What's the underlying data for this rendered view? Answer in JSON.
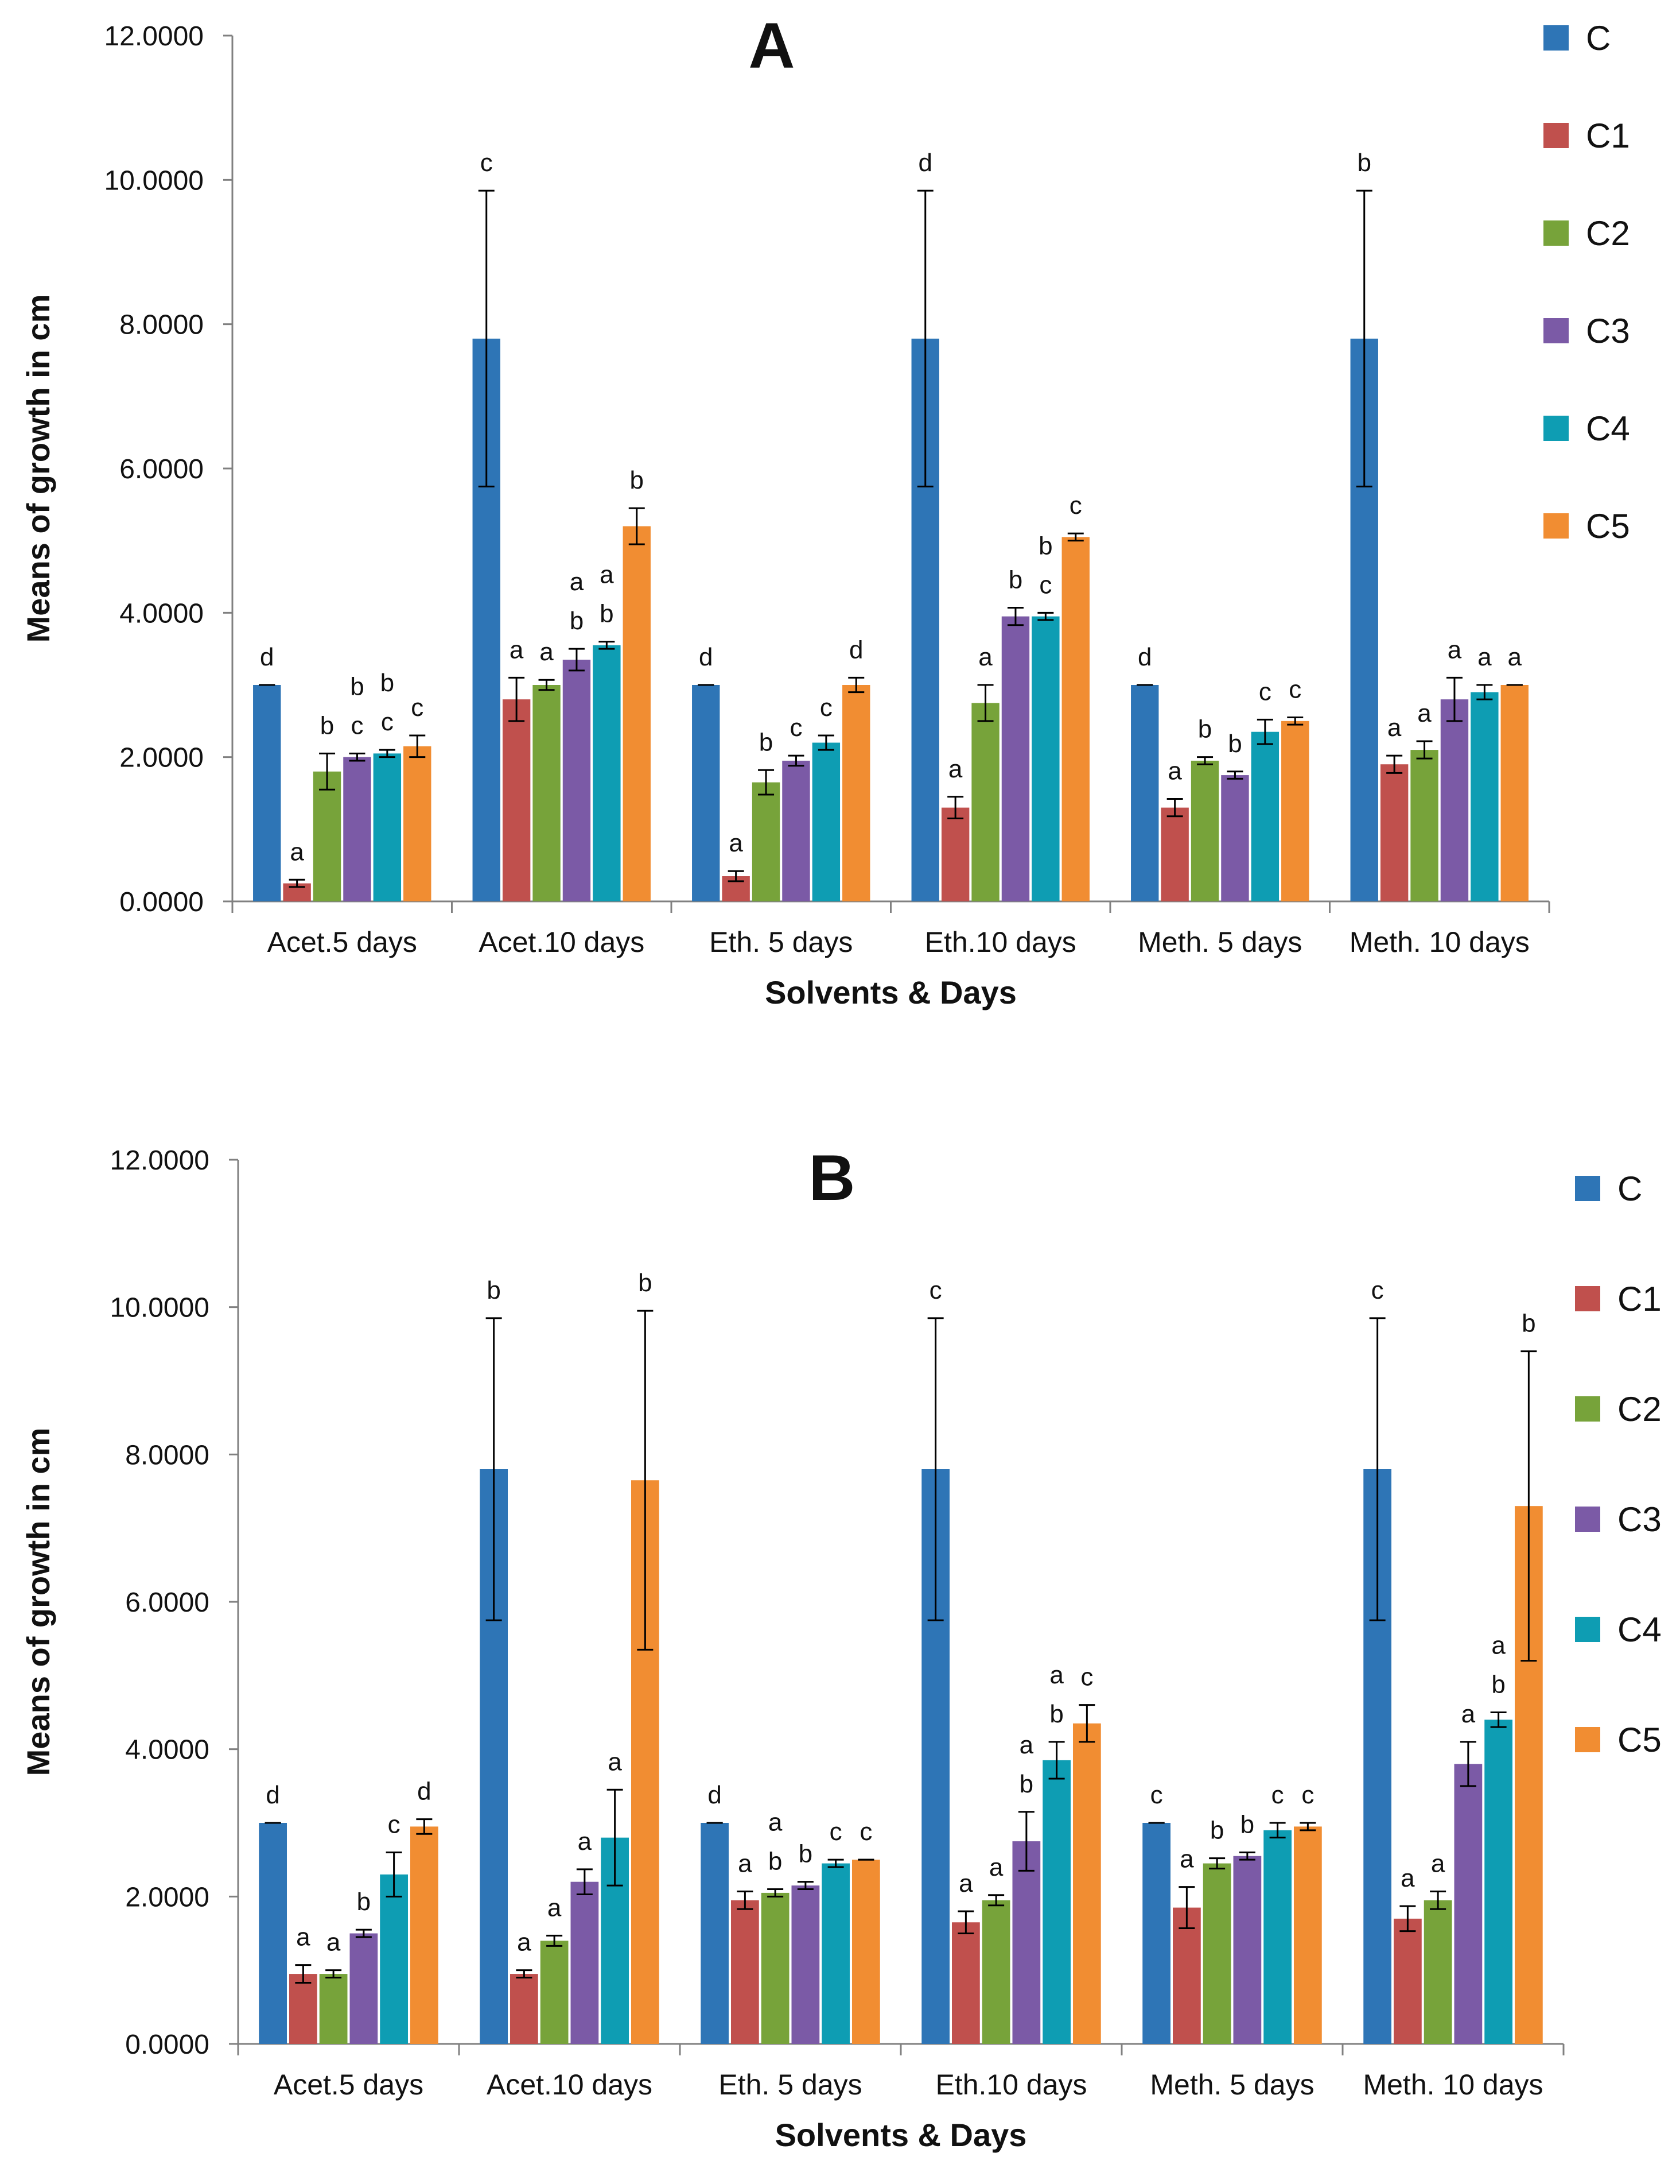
{
  "chart_data": [
    {
      "type": "bar",
      "title": "A",
      "xlabel": "Solvents & Days",
      "ylabel": "Means of growth in cm",
      "ylim": [
        0,
        12
      ],
      "yticks": [
        "0.0000",
        "2.0000",
        "4.0000",
        "6.0000",
        "8.0000",
        "10.0000",
        "12.0000"
      ],
      "grid": false,
      "legend_position": "right",
      "categories": [
        "Acet.5 days",
        "Acet.10 days",
        "Eth. 5 days",
        "Eth.10 days",
        "Meth. 5 days",
        "Meth. 10 days"
      ],
      "series": [
        {
          "name": "C",
          "color": "#2E75B6",
          "values": [
            3.0,
            7.8,
            3.0,
            7.8,
            3.0,
            7.8
          ],
          "errors": [
            0.0,
            2.05,
            0.0,
            2.05,
            0.0,
            2.05
          ]
        },
        {
          "name": "C1",
          "color": "#C0504D",
          "values": [
            0.25,
            2.8,
            0.35,
            1.3,
            1.3,
            1.9
          ],
          "errors": [
            0.05,
            0.3,
            0.07,
            0.15,
            0.12,
            0.12
          ]
        },
        {
          "name": "C2",
          "color": "#77A33A",
          "values": [
            1.8,
            3.0,
            1.65,
            2.75,
            1.95,
            2.1
          ],
          "errors": [
            0.25,
            0.07,
            0.17,
            0.25,
            0.05,
            0.12
          ]
        },
        {
          "name": "C3",
          "color": "#7B5AA6",
          "values": [
            2.0,
            3.35,
            1.95,
            3.95,
            1.75,
            2.8
          ],
          "errors": [
            0.05,
            0.15,
            0.07,
            0.12,
            0.05,
            0.3
          ]
        },
        {
          "name": "C4",
          "color": "#0E9DB3",
          "values": [
            2.05,
            3.55,
            2.2,
            3.95,
            2.35,
            2.9
          ],
          "errors": [
            0.05,
            0.05,
            0.1,
            0.05,
            0.17,
            0.1
          ]
        },
        {
          "name": "C5",
          "color": "#F18D32",
          "values": [
            2.15,
            5.2,
            3.0,
            5.05,
            2.5,
            3.0
          ],
          "errors": [
            0.15,
            0.25,
            0.1,
            0.05,
            0.05,
            0.0
          ]
        }
      ],
      "significance": [
        [
          [
            "d"
          ],
          [
            "a"
          ],
          [
            "b"
          ],
          [
            "b",
            "c"
          ],
          [
            "b",
            "c"
          ],
          [
            "c"
          ]
        ],
        [
          [
            "c"
          ],
          [
            "a"
          ],
          [
            "a"
          ],
          [
            "a",
            "b"
          ],
          [
            "a",
            "b"
          ],
          [
            "b"
          ]
        ],
        [
          [
            "d"
          ],
          [
            "a"
          ],
          [
            "b"
          ],
          [
            "c"
          ],
          [
            "c"
          ],
          [
            "d"
          ]
        ],
        [
          [
            "d"
          ],
          [
            "a"
          ],
          [
            "a"
          ],
          [
            "b"
          ],
          [
            "b",
            "c"
          ],
          [
            "c"
          ]
        ],
        [
          [
            "d"
          ],
          [
            "a"
          ],
          [
            "b"
          ],
          [
            "b"
          ],
          [
            "c"
          ],
          [
            "c"
          ]
        ],
        [
          [
            "b"
          ],
          [
            "a"
          ],
          [
            "a"
          ],
          [
            "a"
          ],
          [
            "a"
          ],
          [
            "a"
          ]
        ]
      ]
    },
    {
      "type": "bar",
      "title": "B",
      "xlabel": "Solvents & Days",
      "ylabel": "Means of growth in cm",
      "ylim": [
        0,
        12
      ],
      "yticks": [
        "0.0000",
        "2.0000",
        "4.0000",
        "6.0000",
        "8.0000",
        "10.0000",
        "12.0000"
      ],
      "grid": false,
      "legend_position": "right",
      "categories": [
        "Acet.5 days",
        "Acet.10 days",
        "Eth. 5 days",
        "Eth.10 days",
        "Meth. 5 days",
        "Meth. 10 days"
      ],
      "series": [
        {
          "name": "C",
          "color": "#2E75B6",
          "values": [
            3.0,
            7.8,
            3.0,
            7.8,
            3.0,
            7.8
          ],
          "errors": [
            0.0,
            2.05,
            0.0,
            2.05,
            0.0,
            2.05
          ]
        },
        {
          "name": "C1",
          "color": "#C0504D",
          "values": [
            0.95,
            0.95,
            1.95,
            1.65,
            1.85,
            1.7
          ],
          "errors": [
            0.12,
            0.05,
            0.12,
            0.15,
            0.28,
            0.17
          ]
        },
        {
          "name": "C2",
          "color": "#77A33A",
          "values": [
            0.95,
            1.4,
            2.05,
            1.95,
            2.45,
            1.95
          ],
          "errors": [
            0.05,
            0.07,
            0.05,
            0.07,
            0.07,
            0.12
          ]
        },
        {
          "name": "C3",
          "color": "#7B5AA6",
          "values": [
            1.5,
            2.2,
            2.15,
            2.75,
            2.55,
            3.8
          ],
          "errors": [
            0.05,
            0.17,
            0.05,
            0.4,
            0.05,
            0.3
          ]
        },
        {
          "name": "C4",
          "color": "#0E9DB3",
          "values": [
            2.3,
            2.8,
            2.45,
            3.85,
            2.9,
            4.4
          ],
          "errors": [
            0.3,
            0.65,
            0.05,
            0.25,
            0.1,
            0.1
          ]
        },
        {
          "name": "C5",
          "color": "#F18D32",
          "values": [
            2.95,
            7.65,
            2.5,
            4.35,
            2.95,
            7.3
          ],
          "errors": [
            0.1,
            2.3,
            0.0,
            0.25,
            0.05,
            2.1
          ]
        }
      ],
      "significance": [
        [
          [
            "d"
          ],
          [
            "a"
          ],
          [
            "a"
          ],
          [
            "b"
          ],
          [
            "c"
          ],
          [
            "d"
          ]
        ],
        [
          [
            "b"
          ],
          [
            "a"
          ],
          [
            "a"
          ],
          [
            "a"
          ],
          [
            "a"
          ],
          [
            "b"
          ]
        ],
        [
          [
            "d"
          ],
          [
            "a"
          ],
          [
            "a",
            "b"
          ],
          [
            "b"
          ],
          [
            "c"
          ],
          [
            "c"
          ]
        ],
        [
          [
            "c"
          ],
          [
            "a"
          ],
          [
            "a"
          ],
          [
            "a",
            "b"
          ],
          [
            "a",
            "b"
          ],
          [
            "c"
          ]
        ],
        [
          [
            "c"
          ],
          [
            "a"
          ],
          [
            "b"
          ],
          [
            "b"
          ],
          [
            "c"
          ],
          [
            "c"
          ]
        ],
        [
          [
            "c"
          ],
          [
            "a"
          ],
          [
            "a"
          ],
          [
            "a"
          ],
          [
            "a",
            "b"
          ],
          [
            "b"
          ]
        ]
      ]
    }
  ]
}
